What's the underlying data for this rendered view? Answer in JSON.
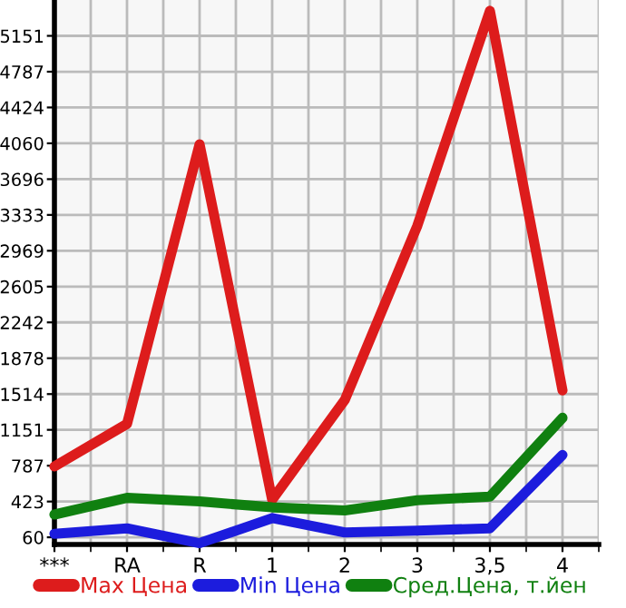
{
  "chart_data": {
    "type": "line",
    "categories": [
      "***",
      "RA",
      "R",
      "1",
      "2",
      "3",
      "3,5",
      "4"
    ],
    "series": [
      {
        "name": "Max Цена",
        "color": "#dd1c1c",
        "values": [
          780,
          1211,
          4050,
          442,
          1454,
          3223,
          5405,
          1551
        ]
      },
      {
        "name": "Min Цена",
        "color": "#1c1cdd",
        "values": [
          96,
          151,
          0,
          255,
          109,
          127,
          151,
          896
        ]
      },
      {
        "name": "Сред.Цена, т.йен",
        "color": "#108010",
        "values": [
          291,
          460,
          424,
          364,
          333,
          436,
          473,
          1273
        ]
      }
    ],
    "ylim": [
      -13,
      5515
    ],
    "yticks": [
      60,
      423,
      787,
      1151,
      1514,
      1878,
      2242,
      2605,
      2969,
      3333,
      3696,
      4060,
      4424,
      4787,
      5151
    ],
    "grid": true,
    "legend": "bottom",
    "marker": "none",
    "line_style": "solid"
  }
}
